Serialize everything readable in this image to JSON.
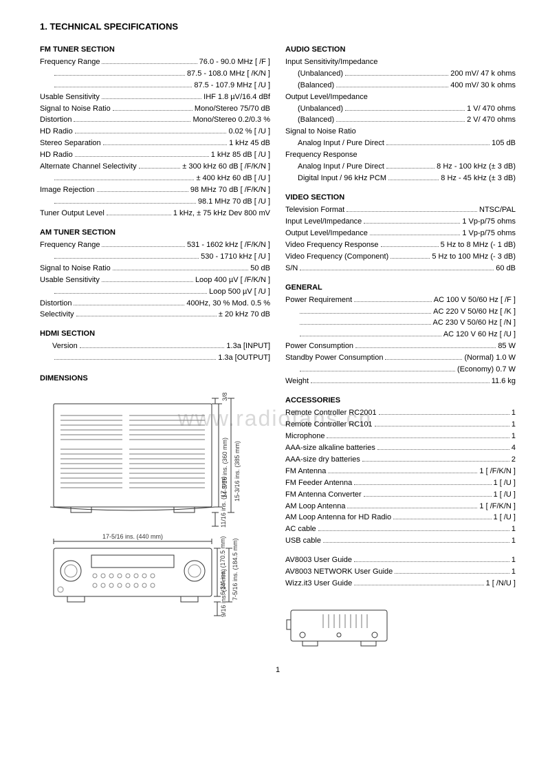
{
  "title": "1.   TECHNICAL SPECIFICATIONS",
  "watermark": "www.radiofans.cn",
  "page_number": "1",
  "left": {
    "fm": {
      "heading": "FM TUNER SECTION",
      "rows": [
        {
          "label": "Frequency Range",
          "value": "76.0 - 90.0 MHz [ /F ]"
        },
        {
          "label": "",
          "value": "87.5 - 108.0 MHz [ /K/N ]",
          "indent": true
        },
        {
          "label": "",
          "value": "87.5 - 107.9 MHz [ /U ]",
          "indent": true
        },
        {
          "label": "Usable Sensitivity",
          "value": "IHF 1.8 µV/16.4 dBf"
        },
        {
          "label": "Signal to Noise Ratio",
          "value": "Mono/Stereo 75/70 dB"
        },
        {
          "label": "Distortion",
          "value": "Mono/Stereo 0.2/0.3 %"
        },
        {
          "label": "HD Radio",
          "value": "0.02 % [ /U ]"
        },
        {
          "label": "Stereo Separation",
          "value": "1 kHz 45 dB"
        },
        {
          "label": "HD Radio",
          "value": "1 kHz 85 dB [ /U ]"
        },
        {
          "label": "Alternate Channel Selectivity",
          "value": "± 300 kHz 60 dB [ /F/K/N ]"
        },
        {
          "label": "",
          "value": "± 400 kHz 60 dB [ /U ]",
          "indent": true
        },
        {
          "label": "Image Rejection",
          "value": "98 MHz 70 dB [ /F/K/N ]"
        },
        {
          "label": "",
          "value": "98.1 MHz 70 dB [ /U ]",
          "indent": true
        },
        {
          "label": "Tuner Output Level",
          "value": "1 kHz, ± 75 kHz Dev 800 mV"
        }
      ]
    },
    "am": {
      "heading": "AM TUNER SECTION",
      "rows": [
        {
          "label": "Frequency Range",
          "value": "531 - 1602 kHz [ /F/K/N ]"
        },
        {
          "label": "",
          "value": "530 - 1710 kHz [ /U ]",
          "indent": true
        },
        {
          "label": "Signal to Noise Ratio",
          "value": "50 dB"
        },
        {
          "label": "Usable Sensitivity",
          "value": "Loop 400 µV [ /F/K/N ]"
        },
        {
          "label": "",
          "value": "Loop 500 µV [ /U ]",
          "indent": true
        },
        {
          "label": "Distortion",
          "value": "400Hz, 30 % Mod. 0.5 %"
        },
        {
          "label": "Selectivity",
          "value": "± 20 kHz 70 dB"
        }
      ]
    },
    "hdmi": {
      "heading": "HDMI SECTION",
      "rows": [
        {
          "label": "Version",
          "value": "1.3a [INPUT]",
          "indent": true
        },
        {
          "label": "",
          "value": "1.3a [OUTPUT]",
          "indent": true
        }
      ]
    },
    "dimensions_heading": "DIMENSIONS",
    "dimensions": {
      "top_margin": "3/8 ins. (8 mm)",
      "body_h": "14-3/16 ins. (360 mm)",
      "total_h": "15-3/16 ins. (385 mm)",
      "foot_h": "11/16 ins. (17 mm)",
      "width": "17-5/16 ins. (440 mm)",
      "face_h": "6-3/4 ins. (170.5 mm)",
      "face_total": "7-5/16 ins. (184.5 mm)",
      "feet": "9/16 ins. (14 mm)"
    }
  },
  "right": {
    "audio": {
      "heading": "AUDIO SECTION",
      "pre1": "Input Sensitivity/Impedance",
      "rows1": [
        {
          "label": "(Unbalanced)",
          "value": "200 mV/ 47 k ohms",
          "indent": true
        },
        {
          "label": "(Balanced)",
          "value": "400 mV/ 30 k ohms",
          "indent": true
        }
      ],
      "pre2": "Output Level/Impedance",
      "rows2": [
        {
          "label": "(Unbalanced)",
          "value": "1 V/ 470 ohms",
          "indent": true
        },
        {
          "label": "(Balanced)",
          "value": "2 V/ 470 ohms",
          "indent": true
        }
      ],
      "pre3": "Signal to Noise Ratio",
      "rows3": [
        {
          "label": "Analog Input / Pure Direct",
          "value": "105 dB",
          "indent": true
        }
      ],
      "pre4": "Frequency Response",
      "rows4": [
        {
          "label": "Analog Input / Pure Direct",
          "value": "8 Hz - 100 kHz (± 3 dB)",
          "indent": true
        },
        {
          "label": "Digital Input / 96 kHz PCM",
          "value": "8 Hz - 45 kHz (± 3 dB)",
          "indent": true
        }
      ]
    },
    "video": {
      "heading": "VIDEO SECTION",
      "rows": [
        {
          "label": "Television Format",
          "value": "NTSC/PAL"
        },
        {
          "label": "Input Level/Impedance",
          "value": "1 Vp-p/75 ohms"
        },
        {
          "label": "Output Level/Impedance",
          "value": "1 Vp-p/75 ohms"
        },
        {
          "label": "Video Frequency Response",
          "value": "5 Hz to 8 MHz (- 1 dB)"
        },
        {
          "label": "Video Frequency (Component)",
          "value": "5 Hz to 100 MHz (- 3 dB)"
        },
        {
          "label": "S/N",
          "value": "60 dB"
        }
      ]
    },
    "general": {
      "heading": "GENERAL",
      "rows": [
        {
          "label": "Power Requirement",
          "value": "AC 100 V 50/60 Hz [ /F ]"
        },
        {
          "label": "",
          "value": "AC 220 V 50/60 Hz [ /K ]",
          "indent": true
        },
        {
          "label": "",
          "value": "AC 230 V 50/60 Hz [ /N ]",
          "indent": true
        },
        {
          "label": "",
          "value": "AC 120 V 60 Hz [ /U ]",
          "indent": true
        },
        {
          "label": "Power Consumption",
          "value": "85 W"
        },
        {
          "label": "Standby Power Consumption",
          "value": "(Normal) 1.0 W"
        },
        {
          "label": "",
          "value": "(Economy) 0.7 W",
          "indent": true
        },
        {
          "label": "Weight",
          "value": "11.6 kg"
        }
      ]
    },
    "accessories": {
      "heading": "ACCESSORIES",
      "rows": [
        {
          "label": "Remote Controller RC2001",
          "value": "1"
        },
        {
          "label": "Remote Controller RC101",
          "value": "1"
        },
        {
          "label": "Microphone",
          "value": "1"
        },
        {
          "label": "AAA-size alkaline batteries",
          "value": "4"
        },
        {
          "label": "AAA-size dry batteries",
          "value": "2"
        },
        {
          "label": "FM Antenna",
          "value": "1 [ /F/K/N ]"
        },
        {
          "label": "FM Feeder Antenna",
          "value": "1 [ /U ]"
        },
        {
          "label": "FM Antenna Converter",
          "value": "1 [ /U ]"
        },
        {
          "label": "AM Loop Antenna",
          "value": "1 [ /F/K/N ]"
        },
        {
          "label": "AM Loop Antenna for HD Radio",
          "value": "1 [ /U ]"
        },
        {
          "label": "AC cable",
          "value": "1"
        },
        {
          "label": "USB cable",
          "value": "1"
        }
      ],
      "rows2": [
        {
          "label": "AV8003 User Guide",
          "value": "1"
        },
        {
          "label": "AV8003 NETWORK User Guide",
          "value": "1"
        },
        {
          "label": "Wizz.it3 User Guide",
          "value": "1 [ /N/U ]"
        }
      ]
    }
  }
}
